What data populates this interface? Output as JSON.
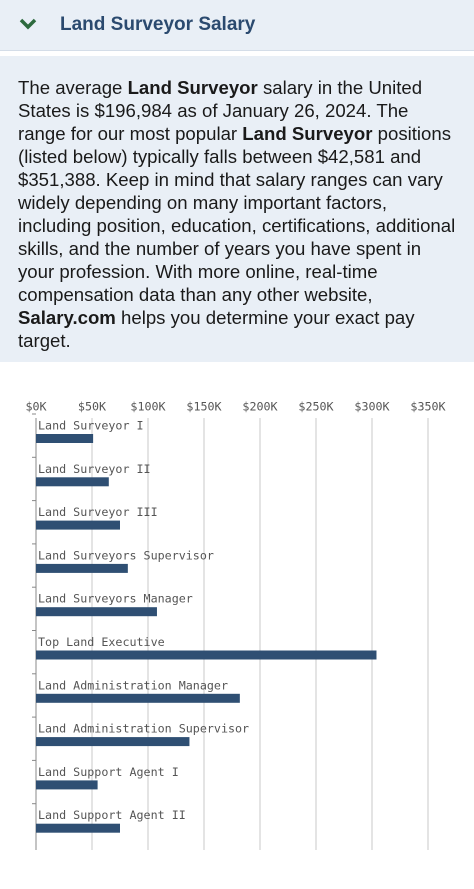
{
  "header": {
    "title": "Land Surveyor Salary"
  },
  "intro": {
    "segments": [
      {
        "text": "The average ",
        "bold": false
      },
      {
        "text": "Land Surveyor",
        "bold": true
      },
      {
        "text": " salary in the United States is $196,984 as of January 26, 2024. The range for our most popular ",
        "bold": false
      },
      {
        "text": "Land Surveyor",
        "bold": true
      },
      {
        "text": " positions (listed below) typically falls between $42,581 and $351,388. Keep in mind that salary ranges can vary widely depending on many important factors, including position, education, certifications, additional skills, and the number of years you have spent in your profession. With more online, real-time compensation data than any other website, ",
        "bold": false
      },
      {
        "text": "Salary.com",
        "bold": true
      },
      {
        "text": " helps you determine your exact pay target.",
        "bold": false
      }
    ]
  },
  "chart_data": {
    "type": "barh",
    "categories": [
      "Land Surveyor I",
      "Land Surveyor II",
      "Land Surveyor III",
      "Land Surveyors Supervisor",
      "Land Surveyors Manager",
      "Top Land Executive",
      "Land Administration Manager",
      "Land Administration Supervisor",
      "Land Support Agent I",
      "Land Support Agent II"
    ],
    "values": [
      51,
      65,
      75,
      82,
      108,
      304,
      182,
      137,
      55,
      75
    ],
    "color": "#2f4f73",
    "xlim": [
      0,
      350
    ],
    "xticks": [
      {
        "value": 0,
        "label": "$0K"
      },
      {
        "value": 50,
        "label": "$50K"
      },
      {
        "value": 100,
        "label": "$100K"
      },
      {
        "value": 150,
        "label": "$150K"
      },
      {
        "value": 200,
        "label": "$200K"
      },
      {
        "value": 250,
        "label": "$250K"
      },
      {
        "value": 300,
        "label": "$300K"
      },
      {
        "value": 350,
        "label": "$350K"
      }
    ],
    "grid": true
  }
}
